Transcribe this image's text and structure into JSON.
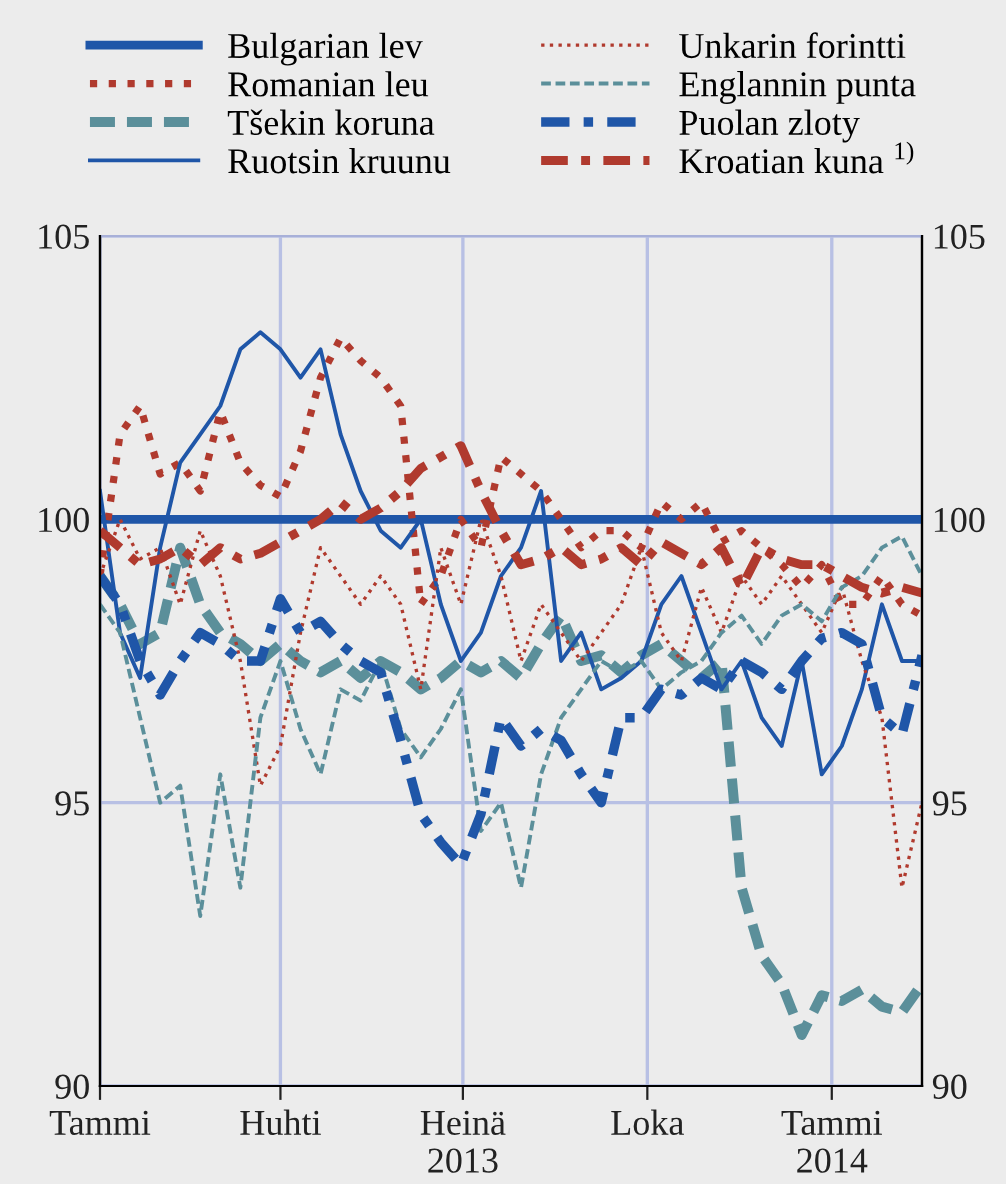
{
  "chart_data": {
    "type": "line",
    "x": [
      "2013-01-01",
      "2013-01-11",
      "2013-01-21",
      "2013-01-31",
      "2013-02-10",
      "2013-02-20",
      "2013-03-02",
      "2013-03-12",
      "2013-03-22",
      "2013-04-01",
      "2013-04-11",
      "2013-04-21",
      "2013-05-01",
      "2013-05-11",
      "2013-05-21",
      "2013-05-31",
      "2013-06-10",
      "2013-06-20",
      "2013-06-30",
      "2013-07-10",
      "2013-07-20",
      "2013-07-30",
      "2013-08-09",
      "2013-08-19",
      "2013-08-29",
      "2013-09-08",
      "2013-09-18",
      "2013-09-28",
      "2013-10-08",
      "2013-10-18",
      "2013-10-28",
      "2013-11-07",
      "2013-11-17",
      "2013-11-27",
      "2013-12-07",
      "2013-12-17",
      "2013-12-27",
      "2014-01-06",
      "2014-01-16",
      "2014-01-26",
      "2014-02-05",
      "2014-02-15"
    ],
    "series": [
      {
        "name": "Bulgarian lev",
        "color": "#1f56a8",
        "line_style": "solid",
        "values": [
          100,
          100,
          100,
          100,
          100,
          100,
          100,
          100,
          100,
          100,
          100,
          100,
          100,
          100,
          100,
          100,
          100,
          100,
          100,
          100,
          100,
          100,
          100,
          100,
          100,
          100,
          100,
          100,
          100,
          100,
          100,
          100,
          100,
          100,
          100,
          100,
          100,
          100,
          100,
          100,
          100,
          100
        ]
      },
      {
        "name": "Romanian leu",
        "color": "#b03a2e",
        "line_style": "dotted",
        "values": [
          99,
          101.5,
          102,
          100.8,
          101,
          100.5,
          101.9,
          101,
          100.6,
          100.4,
          101.2,
          102.5,
          103.2,
          102.8,
          102.5,
          102,
          98.5,
          99,
          100,
          99.5,
          101.1,
          100.8,
          100.5,
          100,
          99.5,
          99.8,
          99.8,
          99.5,
          100.3,
          100,
          100.3,
          99.6,
          99.8,
          99.5,
          99.2,
          98.8,
          99.2,
          98.5,
          98.5,
          99,
          98.5,
          98.3
        ]
      },
      {
        "name": "Tšekin koruna",
        "color": "#5b8f9a",
        "line_style": "dashed",
        "values": [
          99,
          98.5,
          97.8,
          98,
          99.5,
          98.5,
          98,
          97.8,
          97.5,
          97.8,
          97.5,
          97.3,
          97.5,
          97.2,
          97.5,
          97.3,
          97,
          97.2,
          97.5,
          97.3,
          97.5,
          97.2,
          97.8,
          98.3,
          97.5,
          97.6,
          97.3,
          97.6,
          97.8,
          97.5,
          97.2,
          97.5,
          93.5,
          92.3,
          91.8,
          90.9,
          91.6,
          91.5,
          91.7,
          91.4,
          91.3,
          91.8
        ]
      },
      {
        "name": "Ruotsin kruunu",
        "color": "#1f56a8",
        "line_style": "solid",
        "values": [
          100.5,
          98,
          97.2,
          99.5,
          101,
          101.5,
          102,
          103,
          103.3,
          103,
          102.5,
          103,
          101.5,
          100.5,
          99.8,
          99.5,
          100,
          98.5,
          97.5,
          98,
          99,
          99.5,
          100.5,
          97.5,
          98,
          97,
          97.2,
          97.5,
          98.5,
          99,
          98,
          97,
          97.5,
          96.5,
          96,
          97.5,
          95.5,
          96,
          97,
          98.5,
          97.5,
          97.5
        ]
      },
      {
        "name": "Unkarin forintti",
        "color": "#b03a2e",
        "line_style": "dotted",
        "values": [
          99,
          100,
          99.3,
          99.5,
          98.5,
          99.8,
          99,
          97.5,
          95.3,
          96,
          98,
          99.5,
          99,
          98.5,
          99,
          98.5,
          97,
          99.5,
          98.5,
          100,
          99,
          97.5,
          98.5,
          98,
          97.5,
          98,
          98.5,
          99.5,
          98,
          97.5,
          98.8,
          98,
          99,
          98.5,
          99,
          98.5,
          98,
          98.8,
          97.5,
          96.5,
          93.5,
          95
        ]
      },
      {
        "name": "Englannin punta",
        "color": "#5b8f9a",
        "line_style": "dashed",
        "values": [
          98.5,
          98,
          96.5,
          95,
          95.3,
          93,
          95.5,
          93.5,
          96.5,
          97.5,
          96.3,
          95.5,
          97,
          96.8,
          97.5,
          96.3,
          95.8,
          96.3,
          97,
          94.5,
          95,
          93.5,
          95.5,
          96.5,
          97,
          97.5,
          97.3,
          97.5,
          97,
          97.3,
          97.5,
          98,
          98.3,
          97.8,
          98.3,
          98.5,
          98.2,
          98.8,
          99,
          99.5,
          99.7,
          99
        ]
      },
      {
        "name": "Puolan zloty",
        "color": "#1f56a8",
        "line_style": "dashdot",
        "values": [
          99,
          98.5,
          97.5,
          96.9,
          97.5,
          98,
          97.8,
          97.5,
          97.5,
          98.6,
          98,
          98.2,
          97.8,
          97.5,
          97.3,
          96.1,
          94.8,
          94.3,
          93.9,
          94.8,
          96.5,
          96,
          96.3,
          96.1,
          95.5,
          95,
          96.5,
          96.5,
          97,
          96.9,
          97.2,
          97,
          97.5,
          97.3,
          97,
          97.5,
          97.9,
          98,
          97.8,
          96.5,
          96.2,
          97.6
        ]
      },
      {
        "name": "Kroatian kuna $^{1)}$",
        "color": "#b03a2e",
        "line_style": "dashdot",
        "values": [
          99.8,
          99.5,
          99.2,
          99.3,
          99.5,
          99.2,
          99.5,
          99.3,
          99.4,
          99.6,
          99.8,
          100,
          100.3,
          100,
          100.2,
          100.5,
          100.9,
          101.1,
          101.3,
          100.5,
          99.8,
          99.2,
          99.3,
          99.5,
          99.2,
          99.3,
          99.5,
          99.2,
          99.6,
          99.4,
          99.2,
          99.5,
          98.8,
          99.5,
          99.3,
          99.2,
          99.2,
          99,
          98.8,
          98.7,
          98.8,
          98.7
        ]
      }
    ],
    "xlim": [
      "2013-01-01",
      "2014-02-15"
    ],
    "xticks": [
      {
        "value": "2013-01-01",
        "label": "Tammi"
      },
      {
        "value": "2013-04-01",
        "label": "Huhti"
      },
      {
        "value": "2013-07-01",
        "label": "Heinä\n2013"
      },
      {
        "value": "2013-10-01",
        "label": "Loka"
      },
      {
        "value": "2014-01-01",
        "label": "Tammi\n2014"
      }
    ],
    "ylim": [
      90,
      105
    ],
    "yticks": [
      90,
      95,
      100,
      105
    ],
    "y2lim": [
      90,
      105
    ],
    "y2ticks": [
      90,
      95,
      100,
      105
    ],
    "grid": true,
    "legend": "top"
  }
}
